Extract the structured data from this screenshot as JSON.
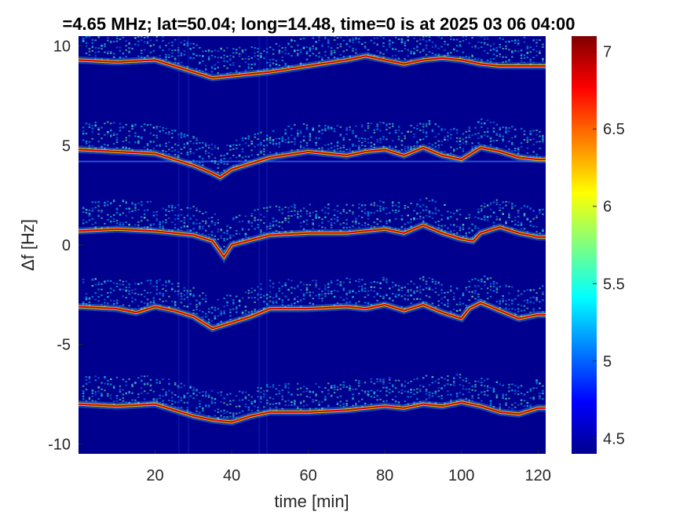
{
  "chart_data": {
    "type": "heatmap",
    "title": "=4.65 MHz;  lat=50.04; long=14.48, time=0 is at 2025 03 06 04:00",
    "xlabel": "time [min]",
    "ylabel": "Δf [Hz]",
    "xlim": [
      0,
      122
    ],
    "ylim": [
      -10.5,
      10.5
    ],
    "x_ticks": [
      20,
      40,
      60,
      80,
      100,
      120
    ],
    "x_tick_labels": [
      "20",
      "40",
      "60",
      "80",
      "100",
      "120"
    ],
    "y_ticks": [
      10,
      5,
      0,
      -5,
      -10
    ],
    "y_tick_labels": [
      "10",
      "5",
      "0",
      "-5",
      "-10"
    ],
    "colorbar": {
      "colormap": "jet",
      "clim": [
        4.4,
        7.1
      ],
      "ticks": [
        7,
        6.5,
        6,
        5.5,
        5,
        4.5
      ],
      "tick_labels": [
        "7",
        "6.5",
        "6",
        "5.5",
        "5",
        "4.5"
      ]
    },
    "background_color": "#00008f",
    "series": [
      {
        "band": 1,
        "x": [
          0,
          10,
          20,
          25,
          30,
          35,
          40,
          50,
          60,
          70,
          75,
          80,
          85,
          90,
          95,
          100,
          105,
          110,
          115,
          120
        ],
        "values": [
          9.3,
          9.2,
          9.3,
          9.0,
          8.7,
          8.4,
          8.5,
          8.7,
          9.0,
          9.3,
          9.5,
          9.3,
          9.1,
          9.3,
          9.4,
          9.3,
          9.1,
          9.0,
          9.0,
          9.0
        ]
      },
      {
        "band": 2,
        "x": [
          0,
          10,
          20,
          25,
          30,
          35,
          37,
          40,
          50,
          60,
          70,
          75,
          80,
          85,
          90,
          95,
          100,
          105,
          110,
          115,
          120
        ],
        "values": [
          4.8,
          4.7,
          4.6,
          4.3,
          4.0,
          3.6,
          3.4,
          3.8,
          4.4,
          4.7,
          4.5,
          4.7,
          4.8,
          4.5,
          4.9,
          4.5,
          4.3,
          4.9,
          4.7,
          4.4,
          4.3
        ]
      },
      {
        "band": 3,
        "x": [
          0,
          10,
          20,
          25,
          30,
          35,
          38,
          40,
          50,
          60,
          70,
          75,
          80,
          85,
          90,
          95,
          100,
          103,
          105,
          110,
          115,
          120
        ],
        "values": [
          0.7,
          0.8,
          0.7,
          0.6,
          0.5,
          0.2,
          -0.6,
          0.0,
          0.5,
          0.6,
          0.6,
          0.7,
          0.8,
          0.6,
          1.0,
          0.6,
          0.3,
          0.2,
          0.6,
          0.9,
          0.6,
          0.4
        ]
      },
      {
        "band": 4,
        "x": [
          0,
          10,
          15,
          20,
          25,
          30,
          35,
          40,
          45,
          50,
          60,
          70,
          75,
          80,
          85,
          90,
          95,
          100,
          102,
          105,
          110,
          115,
          120
        ],
        "values": [
          -3.1,
          -3.2,
          -3.4,
          -3.1,
          -3.3,
          -3.6,
          -4.2,
          -3.9,
          -3.6,
          -3.2,
          -3.2,
          -3.1,
          -3.2,
          -3.0,
          -3.3,
          -3.0,
          -3.4,
          -3.7,
          -3.2,
          -2.9,
          -3.3,
          -3.7,
          -3.5
        ]
      },
      {
        "band": 5,
        "x": [
          0,
          10,
          20,
          25,
          30,
          35,
          40,
          45,
          50,
          60,
          70,
          80,
          85,
          90,
          95,
          100,
          105,
          110,
          115,
          120
        ],
        "values": [
          -8.0,
          -8.1,
          -8.0,
          -8.3,
          -8.6,
          -8.8,
          -8.9,
          -8.6,
          -8.4,
          -8.4,
          -8.3,
          -8.1,
          -8.2,
          -8.0,
          -8.1,
          -7.9,
          -8.1,
          -8.4,
          -8.5,
          -8.2
        ]
      }
    ]
  }
}
